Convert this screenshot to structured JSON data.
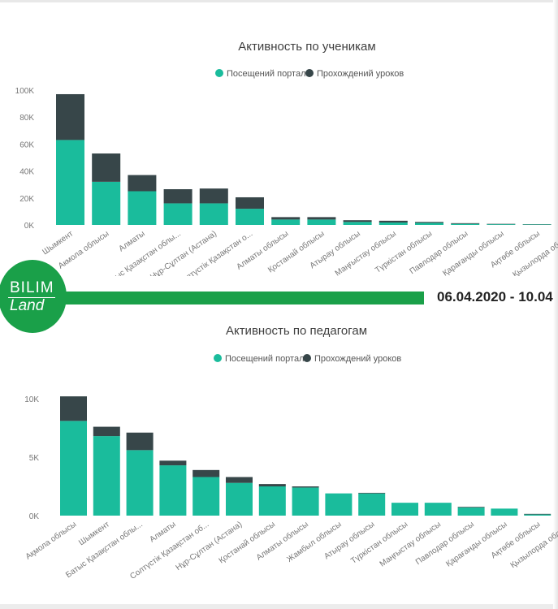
{
  "banner": {
    "logo_top": "BILIM",
    "logo_bottom": "Land",
    "date_range": "06.04.2020 - 10.04"
  },
  "colors": {
    "portal": "#1abc9c",
    "lessons": "#374649",
    "banner": "#1aa049"
  },
  "chart_data": [
    {
      "type": "bar",
      "stacked": true,
      "title": "Активность по ученикам",
      "legend": [
        "Посещений портала",
        "Прохождений уроков"
      ],
      "legend_position": "top-center",
      "yticks": [
        "100K",
        "80K",
        "60K",
        "40K",
        "20K",
        "0K"
      ],
      "ytick_values": [
        100000,
        80000,
        60000,
        40000,
        20000,
        0
      ],
      "ylim": [
        0,
        100000
      ],
      "categories": [
        "Шымкент",
        "Акмола облысы",
        "Алматы",
        "Батыс Қазақстан облы...",
        "Нұр-Сұлтан (Астана)",
        "Солтүстік Қазақстан о...",
        "Алматы облысы",
        "Қостанай облысы",
        "Атырау облысы",
        "Маңғыстау облысы",
        "Түркістан облысы",
        "Павлодар облысы",
        "Қарағанды облысы",
        "Ақтөбе облысы",
        "Қызылорда облысы"
      ],
      "series": [
        {
          "name": "Посещений портала",
          "values": [
            63000,
            32000,
            25000,
            16000,
            16000,
            12000,
            4000,
            4000,
            2200,
            1800,
            1500,
            800,
            500,
            300,
            200
          ]
        },
        {
          "name": "Прохождений уроков",
          "values": [
            34000,
            21000,
            12000,
            10500,
            11000,
            8500,
            1800,
            1800,
            1300,
            1300,
            700,
            500,
            300,
            200,
            100
          ]
        }
      ]
    },
    {
      "type": "bar",
      "stacked": true,
      "title": "Активность по педагогам",
      "legend": [
        "Посещений портала",
        "Прохождений уроков"
      ],
      "legend_position": "top-center",
      "yticks": [
        "10K",
        "5K",
        "0K"
      ],
      "ytick_values": [
        10000,
        5000,
        0
      ],
      "ylim": [
        0,
        10000
      ],
      "categories": [
        "Ақмола облысы",
        "Шымкент",
        "Батыс Қазақстан облы...",
        "Алматы",
        "Солтүстік Қазақстан об...",
        "Нұр-Сұлтан (Астана)",
        "Қостанай облысы",
        "Алматы облысы",
        "Жамбыл облысы",
        "Атырау облысы",
        "Түркістан облысы",
        "Маңғыстау облысы",
        "Павлодар облысы",
        "Қарағанды облысы",
        "Ақтөбе облысы",
        "Қызылорда облысы"
      ],
      "series": [
        {
          "name": "Посещений портала",
          "values": [
            8100,
            6800,
            5600,
            4300,
            3300,
            2800,
            2500,
            2400,
            1900,
            1900,
            1100,
            1100,
            700,
            600,
            100,
            0
          ]
        },
        {
          "name": "Прохождений уроков",
          "values": [
            2100,
            800,
            1500,
            400,
            600,
            500,
            200,
            100,
            0,
            50,
            0,
            0,
            50,
            0,
            50,
            0
          ]
        }
      ]
    }
  ]
}
